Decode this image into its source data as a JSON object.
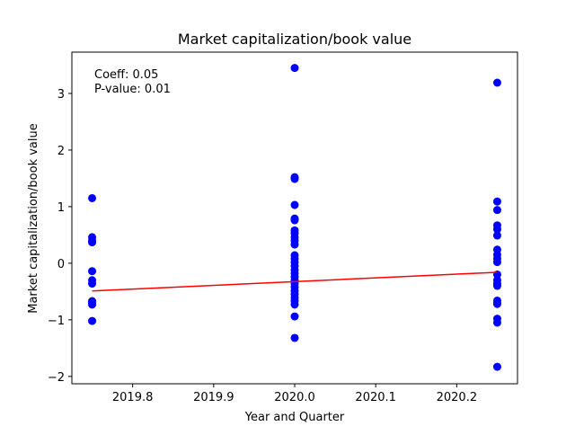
{
  "chart_data": {
    "type": "scatter",
    "title": "Market capitalization/book value",
    "xlabel": "Year and Quarter",
    "ylabel": "Market capitalization/book value",
    "xlim": [
      2019.725,
      2020.275
    ],
    "ylim": [
      -2.13,
      3.73
    ],
    "xticks": [
      2019.8,
      2019.9,
      2020.0,
      2020.1,
      2020.2
    ],
    "xtick_labels": [
      "2019.8",
      "2019.9",
      "2020.0",
      "2020.1",
      "2020.2"
    ],
    "yticks": [
      -2,
      -1,
      0,
      1,
      2,
      3
    ],
    "ytick_labels": [
      "−2",
      "−1",
      "0",
      "1",
      "2",
      "3"
    ],
    "grid": false,
    "annotations": [
      "Coeff: 0.05",
      "P-value: 0.01"
    ],
    "colors": {
      "points": "#0000ff",
      "fit": "#ff0000"
    },
    "series": [
      {
        "type": "scatter",
        "points": [
          [
            2019.75,
            1.15
          ],
          [
            2019.75,
            0.46
          ],
          [
            2019.75,
            0.4
          ],
          [
            2019.75,
            0.37
          ],
          [
            2019.75,
            -0.14
          ],
          [
            2019.75,
            -0.3
          ],
          [
            2019.75,
            -0.36
          ],
          [
            2019.75,
            -0.67
          ],
          [
            2019.75,
            -0.69
          ],
          [
            2019.75,
            -0.71
          ],
          [
            2019.75,
            -0.73
          ],
          [
            2019.75,
            -1.02
          ],
          [
            2020.0,
            3.45
          ],
          [
            2020.0,
            1.52
          ],
          [
            2020.0,
            1.49
          ],
          [
            2020.0,
            1.03
          ],
          [
            2020.0,
            0.79
          ],
          [
            2020.0,
            0.76
          ],
          [
            2020.0,
            0.58
          ],
          [
            2020.0,
            0.53
          ],
          [
            2020.0,
            0.46
          ],
          [
            2020.0,
            0.4
          ],
          [
            2020.0,
            0.33
          ],
          [
            2020.0,
            0.14
          ],
          [
            2020.0,
            0.08
          ],
          [
            2020.0,
            0.02
          ],
          [
            2020.0,
            -0.05
          ],
          [
            2020.0,
            -0.12
          ],
          [
            2020.0,
            -0.18
          ],
          [
            2020.0,
            -0.24
          ],
          [
            2020.0,
            -0.3
          ],
          [
            2020.0,
            -0.36
          ],
          [
            2020.0,
            -0.42
          ],
          [
            2020.0,
            -0.49
          ],
          [
            2020.0,
            -0.55
          ],
          [
            2020.0,
            -0.61
          ],
          [
            2020.0,
            -0.67
          ],
          [
            2020.0,
            -0.73
          ],
          [
            2020.0,
            -0.94
          ],
          [
            2020.0,
            -1.32
          ],
          [
            2020.25,
            3.19
          ],
          [
            2020.25,
            1.09
          ],
          [
            2020.25,
            0.94
          ],
          [
            2020.25,
            0.67
          ],
          [
            2020.25,
            0.6
          ],
          [
            2020.25,
            0.49
          ],
          [
            2020.25,
            0.24
          ],
          [
            2020.25,
            0.15
          ],
          [
            2020.25,
            0.08
          ],
          [
            2020.25,
            0.02
          ],
          [
            2020.25,
            -0.2
          ],
          [
            2020.25,
            -0.3
          ],
          [
            2020.25,
            -0.36
          ],
          [
            2020.25,
            -0.4
          ],
          [
            2020.25,
            -0.66
          ],
          [
            2020.25,
            -0.7
          ],
          [
            2020.25,
            -0.72
          ],
          [
            2020.25,
            -0.98
          ],
          [
            2020.25,
            -1.05
          ],
          [
            2020.25,
            -1.83
          ]
        ]
      },
      {
        "type": "line",
        "points": [
          [
            2019.75,
            -0.49
          ],
          [
            2020.25,
            -0.16
          ]
        ]
      }
    ]
  }
}
